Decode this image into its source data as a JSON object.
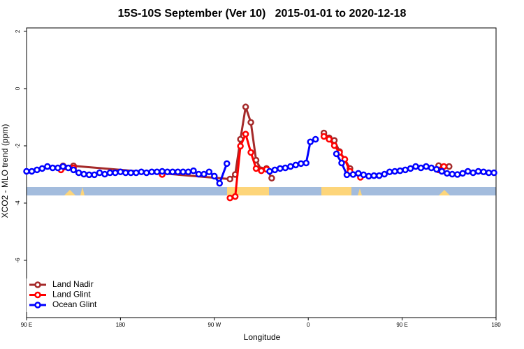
{
  "chart_data": {
    "type": "line",
    "title": "15S-10S September (Ver 10)   2015-01-01 to 2020-12-18",
    "x_label": "Longitude",
    "y_label": "XCO2 - MLO trend (ppm)",
    "xlim": [
      90,
      540
    ],
    "ylim": [
      -8,
      2.12
    ],
    "xticks": [
      {
        "value": 90,
        "label": "90 E"
      },
      180,
      {
        "value": 270,
        "label": "90 W"
      },
      {
        "value": 360,
        "label": "0"
      },
      {
        "value": 450,
        "label": "90 E"
      },
      {
        "value": 540,
        "label": "180"
      }
    ],
    "yticks": [
      2,
      0,
      -2,
      -4,
      -6
    ],
    "legend": "bottom-left",
    "series": [
      {
        "name": "Land Nadir",
        "color": "#a52a2a",
        "x": [
          125,
          135,
          285,
          290,
          295,
          300,
          305,
          310,
          315,
          320,
          325,
          350,
          375,
          380,
          385,
          390,
          395,
          400,
          440,
          485,
          495
        ],
        "values": [
          -2.7,
          -2.7,
          -3.16,
          -3.0,
          -1.77,
          -0.64,
          -1.18,
          -2.5,
          -2.84,
          -2.79,
          -3.13,
          null,
          -1.55,
          -1.72,
          -1.81,
          -2.2,
          -2.47,
          -2.79,
          null,
          -2.69,
          -2.72
        ]
      },
      {
        "name": "Land Glint",
        "color": "#ff0000",
        "x": [
          123,
          135,
          180,
          220,
          250,
          285,
          290,
          295,
          300,
          305,
          310,
          315,
          320,
          350,
          375,
          380,
          385,
          390,
          395,
          400,
          405,
          410,
          450,
          485,
          490
        ],
        "values": [
          -2.84,
          -2.77,
          null,
          -3.0,
          null,
          -3.82,
          -3.77,
          -2.01,
          -1.59,
          -2.23,
          -2.79,
          -2.87,
          -2.82,
          null,
          -1.67,
          -1.77,
          -1.99,
          -2.23,
          -2.47,
          -2.89,
          null,
          -3.1,
          null,
          -2.84,
          -2.72
        ]
      },
      {
        "name": "Ocean Glint",
        "color": "#0000ff",
        "x": [
          90,
          95,
          100,
          105,
          110,
          115,
          120,
          125,
          130,
          135,
          140,
          145,
          150,
          155,
          160,
          165,
          170,
          175,
          180,
          185,
          190,
          195,
          200,
          205,
          210,
          215,
          220,
          225,
          230,
          235,
          240,
          245,
          250,
          255,
          260,
          265,
          270,
          275,
          282,
          300,
          323,
          328,
          333,
          338,
          343,
          348,
          353,
          358,
          362,
          367,
          377,
          387,
          392,
          397,
          403,
          408,
          413,
          418,
          423,
          428,
          433,
          438,
          443,
          448,
          453,
          458,
          463,
          468,
          473,
          478,
          483,
          488,
          493,
          498,
          503,
          508,
          513,
          518,
          523,
          528,
          533,
          538
        ],
        "values": [
          -2.89,
          -2.89,
          -2.84,
          -2.79,
          -2.72,
          -2.77,
          -2.77,
          -2.72,
          -2.77,
          -2.84,
          -2.94,
          -2.99,
          -3.01,
          -3.01,
          -2.94,
          -2.99,
          -2.94,
          -2.94,
          -2.91,
          -2.94,
          -2.94,
          -2.94,
          -2.91,
          -2.94,
          -2.91,
          -2.91,
          -2.89,
          -2.91,
          -2.91,
          -2.91,
          -2.91,
          -2.91,
          -2.87,
          -2.99,
          -2.99,
          -2.91,
          -3.06,
          -3.31,
          -2.62,
          null,
          -2.89,
          -2.84,
          -2.79,
          -2.77,
          -2.72,
          -2.67,
          -2.62,
          -2.6,
          -1.86,
          -1.77,
          null,
          -2.28,
          -2.6,
          -3.01,
          -3.0,
          -2.96,
          -3.01,
          -3.06,
          -3.04,
          -3.04,
          -2.99,
          -2.91,
          -2.89,
          -2.87,
          -2.84,
          -2.79,
          -2.72,
          -2.77,
          -2.72,
          -2.77,
          -2.82,
          -2.89,
          -2.96,
          -2.99,
          -3.0,
          -2.96,
          -2.89,
          -2.94,
          -2.89,
          -2.91,
          -2.94,
          -2.94
        ]
      }
    ]
  }
}
